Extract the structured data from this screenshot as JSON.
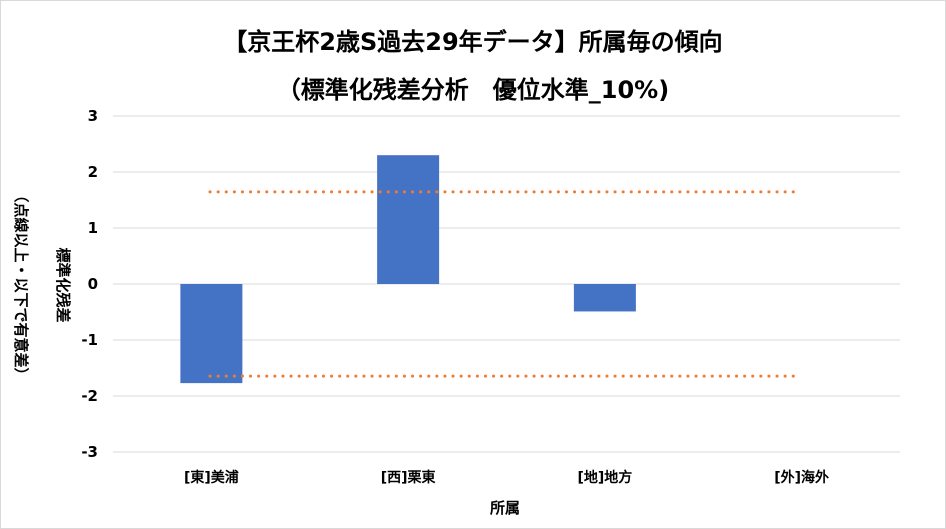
{
  "chart_data": {
    "type": "bar",
    "title": "【京王杯2歳S過去29年データ】所属毎の傾向",
    "subtitle": "（標準化残差分析　優位水準_10%)",
    "xlabel": "所属",
    "ylabel": "標準化残差",
    "ylabel_note": "（点線以上・以下で有意差）",
    "ylim": [
      -3,
      3
    ],
    "yticks": [
      "3",
      "2",
      "1",
      "0",
      "-1",
      "-2",
      "-3"
    ],
    "categories": [
      "[東]美浦",
      "[西]栗東",
      "[地]地方",
      "[外]海外"
    ],
    "values": [
      -1.77,
      2.3,
      -0.49,
      0
    ],
    "thresholds": [
      1.645,
      -1.645
    ],
    "bar_color": "#4472c4",
    "threshold_color": "#ed7d31",
    "grid": true,
    "legend": "none"
  }
}
